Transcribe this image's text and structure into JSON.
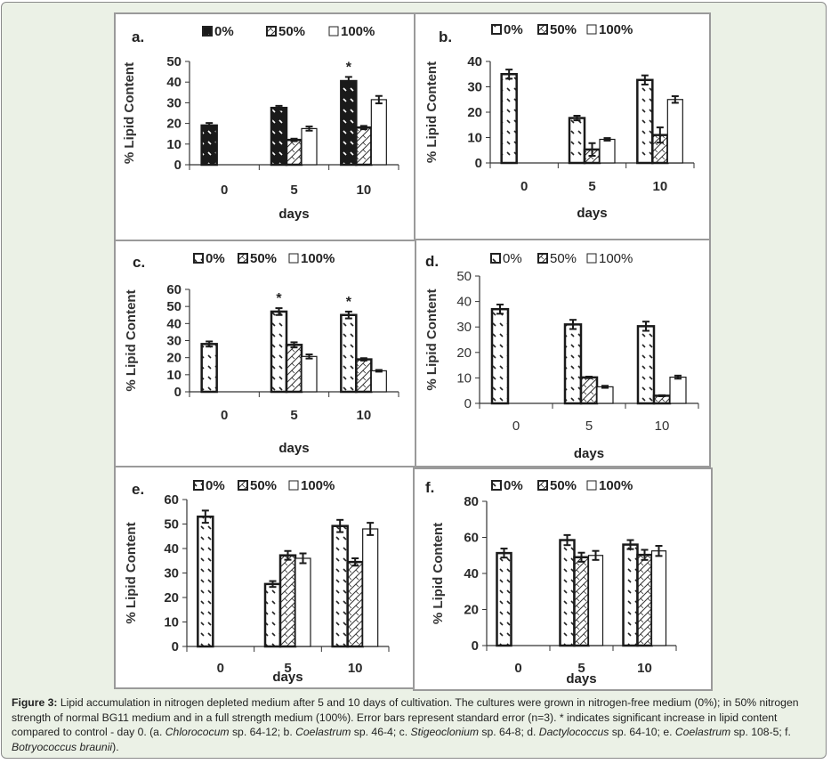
{
  "figure": {
    "caption_label": "Figure 3:",
    "caption_parts": [
      {
        "text": " Lipid accumulation in nitrogen depleted medium after 5 and 10 days of cultivation. The cultures were grown in nitrogen-free medium (0%); in 50% nitrogen strength of normal BG11 medium and in a full strength medium (100%). Error bars represent standard error (n=3). * indicates significant increase in lipid content compared to control - day 0. (a. ",
        "italic": false
      },
      {
        "text": "Chlorococum",
        "italic": true
      },
      {
        "text": " sp. 64-12; b. ",
        "italic": false
      },
      {
        "text": "Coelastrum",
        "italic": true
      },
      {
        "text": " sp. 46-4; c. ",
        "italic": false
      },
      {
        "text": "Stigeoclonium",
        "italic": true
      },
      {
        "text": " sp. 64-8; d. ",
        "italic": false
      },
      {
        "text": "Dactylococcus",
        "italic": true
      },
      {
        "text": " sp. 64-10; e. ",
        "italic": false
      },
      {
        "text": "Coelastrum",
        "italic": true
      },
      {
        "text": " sp. 108-5; f. ",
        "italic": false
      },
      {
        "text": "Botryococcus braunii",
        "italic": true
      },
      {
        "text": ").",
        "italic": false
      }
    ]
  },
  "chart_data": [
    {
      "type": "bar",
      "panel": "a.",
      "title": "a.",
      "xlabel": "days",
      "ylabel": "% Lipid Content",
      "categories": [
        "0",
        "5",
        "10"
      ],
      "ylim": [
        0,
        50
      ],
      "yticks": [
        0,
        10,
        20,
        30,
        40,
        50
      ],
      "legend": [
        "0%",
        "50%",
        "100%"
      ],
      "legend_position": "top",
      "series": [
        {
          "name": "0%",
          "values": [
            19,
            27.5,
            40.5
          ],
          "errors": [
            1.2,
            1.0,
            2.0
          ],
          "style": "dark"
        },
        {
          "name": "50%",
          "values": [
            null,
            12,
            18
          ],
          "errors": [
            null,
            0.6,
            0.8
          ],
          "style": "hatch"
        },
        {
          "name": "100%",
          "values": [
            null,
            17.5,
            31.5
          ],
          "errors": [
            null,
            1.0,
            1.8
          ],
          "style": "white"
        }
      ],
      "annotations": [
        {
          "text": "*",
          "category": "10",
          "series": "0%"
        }
      ],
      "bold_ticks": true
    },
    {
      "type": "bar",
      "panel": "b.",
      "title": "b.",
      "xlabel": "days",
      "ylabel": "% Lipid Content",
      "categories": [
        "0",
        "5",
        "10"
      ],
      "ylim": [
        0,
        40
      ],
      "yticks": [
        0,
        10,
        20,
        30,
        40
      ],
      "legend": [
        "0%",
        "50%",
        "100%"
      ],
      "legend_position": "top",
      "series": [
        {
          "name": "0%",
          "values": [
            35,
            17.7,
            32.7
          ],
          "errors": [
            1.8,
            0.9,
            1.8
          ],
          "style": "dots"
        },
        {
          "name": "50%",
          "values": [
            null,
            5.3,
            11
          ],
          "errors": [
            null,
            2.5,
            3.0
          ],
          "style": "hatch"
        },
        {
          "name": "100%",
          "values": [
            null,
            9.3,
            25
          ],
          "errors": [
            null,
            0.5,
            1.3
          ],
          "style": "white"
        }
      ],
      "annotations": [],
      "bold_ticks": true
    },
    {
      "type": "bar",
      "panel": "c.",
      "title": "c.",
      "xlabel": "days",
      "ylabel": "% Lipid Content",
      "categories": [
        "0",
        "5",
        "10"
      ],
      "ylim": [
        0,
        60
      ],
      "yticks": [
        0,
        10,
        20,
        30,
        40,
        50,
        60
      ],
      "legend": [
        "0%",
        "50%",
        "100%"
      ],
      "legend_position": "top",
      "series": [
        {
          "name": "0%",
          "values": [
            28,
            47,
            45
          ],
          "errors": [
            1.5,
            2.0,
            2.0
          ],
          "style": "dots"
        },
        {
          "name": "50%",
          "values": [
            null,
            27.5,
            19
          ],
          "errors": [
            null,
            1.5,
            0.7
          ],
          "style": "hatch"
        },
        {
          "name": "100%",
          "values": [
            null,
            20.7,
            12.3
          ],
          "errors": [
            null,
            1.2,
            0.5
          ],
          "style": "white"
        }
      ],
      "annotations": [
        {
          "text": "*",
          "category": "5",
          "series": "0%"
        },
        {
          "text": "*",
          "category": "10",
          "series": "0%"
        }
      ],
      "bold_ticks": true
    },
    {
      "type": "bar",
      "panel": "d.",
      "title": "d.",
      "xlabel": "days",
      "ylabel": "% Lipid Content",
      "categories": [
        "0",
        "5",
        "10"
      ],
      "ylim": [
        0,
        50
      ],
      "yticks": [
        0,
        10,
        20,
        30,
        40,
        50
      ],
      "legend": [
        "0%",
        "50%",
        "100%"
      ],
      "legend_position": "top",
      "series": [
        {
          "name": "0%",
          "values": [
            37,
            31,
            30.3
          ],
          "errors": [
            1.8,
            1.8,
            1.8
          ],
          "style": "dots"
        },
        {
          "name": "50%",
          "values": [
            null,
            10.2,
            3
          ],
          "errors": [
            null,
            0.3,
            0.2
          ],
          "style": "hatch"
        },
        {
          "name": "100%",
          "values": [
            null,
            6.5,
            10.3
          ],
          "errors": [
            null,
            0.4,
            0.6
          ],
          "style": "white"
        }
      ],
      "annotations": [],
      "bold_ticks": false
    },
    {
      "type": "bar",
      "panel": "e.",
      "title": "e.",
      "xlabel": "days",
      "ylabel": "% Lipid Content",
      "categories": [
        "0",
        "5",
        "10"
      ],
      "ylim": [
        0,
        60
      ],
      "yticks": [
        0,
        10,
        20,
        30,
        40,
        50,
        60
      ],
      "legend": [
        "0%",
        "50%",
        "100%"
      ],
      "legend_position": "top",
      "series": [
        {
          "name": "0%",
          "values": [
            53,
            25.5,
            49.2
          ],
          "errors": [
            2.5,
            1.2,
            2.5
          ],
          "style": "dots"
        },
        {
          "name": "50%",
          "values": [
            null,
            37.2,
            34.5
          ],
          "errors": [
            null,
            1.8,
            1.5
          ],
          "style": "hatch"
        },
        {
          "name": "100%",
          "values": [
            null,
            36,
            48
          ],
          "errors": [
            null,
            2.0,
            2.5
          ],
          "style": "white"
        }
      ],
      "annotations": [],
      "bold_ticks": true
    },
    {
      "type": "bar",
      "panel": "f.",
      "title": "f.",
      "xlabel": "days",
      "ylabel": "% Lipid Content",
      "categories": [
        "0",
        "5",
        "10"
      ],
      "ylim": [
        0,
        80
      ],
      "yticks": [
        0,
        20,
        40,
        60,
        80
      ],
      "legend": [
        "0%",
        "50%",
        "100%"
      ],
      "legend_position": "top",
      "series": [
        {
          "name": "0%",
          "values": [
            51.3,
            58.5,
            56
          ],
          "errors": [
            2.5,
            2.8,
            2.5
          ],
          "style": "dots"
        },
        {
          "name": "50%",
          "values": [
            null,
            49,
            50.3
          ],
          "errors": [
            null,
            2.5,
            2.8
          ],
          "style": "hatch"
        },
        {
          "name": "100%",
          "values": [
            null,
            50,
            52.5
          ],
          "errors": [
            null,
            2.5,
            2.8
          ],
          "style": "white"
        }
      ],
      "annotations": [],
      "bold_ticks": true
    }
  ]
}
